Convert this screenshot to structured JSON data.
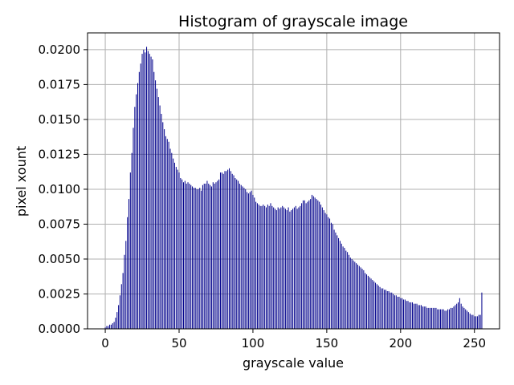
{
  "chart_data": {
    "type": "bar",
    "title": "Histogram of grayscale image",
    "xlabel": "grayscale value",
    "ylabel": "pixel xount",
    "xlim": [
      -12,
      267
    ],
    "ylim": [
      0,
      0.0212
    ],
    "grid": true,
    "bar_color": "#00008b",
    "xticks": [
      0,
      50,
      100,
      150,
      200,
      250
    ],
    "xtick_labels": [
      "0",
      "50",
      "100",
      "150",
      "200",
      "250"
    ],
    "yticks": [
      0,
      0.0025,
      0.005,
      0.0075,
      0.01,
      0.0125,
      0.015,
      0.0175,
      0.02
    ],
    "ytick_labels": [
      "0.0000",
      "0.0025",
      "0.0050",
      "0.0075",
      "0.0100",
      "0.0125",
      "0.0150",
      "0.0175",
      "0.0200"
    ],
    "x": [
      0,
      1,
      2,
      3,
      4,
      5,
      6,
      7,
      8,
      9,
      10,
      11,
      12,
      13,
      14,
      15,
      16,
      17,
      18,
      19,
      20,
      21,
      22,
      23,
      24,
      25,
      26,
      27,
      28,
      29,
      30,
      31,
      32,
      33,
      34,
      35,
      36,
      37,
      38,
      39,
      40,
      41,
      42,
      43,
      44,
      45,
      46,
      47,
      48,
      49,
      50,
      51,
      52,
      53,
      54,
      55,
      56,
      57,
      58,
      59,
      60,
      61,
      62,
      63,
      64,
      65,
      66,
      67,
      68,
      69,
      70,
      71,
      72,
      73,
      74,
      75,
      76,
      77,
      78,
      79,
      80,
      81,
      82,
      83,
      84,
      85,
      86,
      87,
      88,
      89,
      90,
      91,
      92,
      93,
      94,
      95,
      96,
      97,
      98,
      99,
      100,
      101,
      102,
      103,
      104,
      105,
      106,
      107,
      108,
      109,
      110,
      111,
      112,
      113,
      114,
      115,
      116,
      117,
      118,
      119,
      120,
      121,
      122,
      123,
      124,
      125,
      126,
      127,
      128,
      129,
      130,
      131,
      132,
      133,
      134,
      135,
      136,
      137,
      138,
      139,
      140,
      141,
      142,
      143,
      144,
      145,
      146,
      147,
      148,
      149,
      150,
      151,
      152,
      153,
      154,
      155,
      156,
      157,
      158,
      159,
      160,
      161,
      162,
      163,
      164,
      165,
      166,
      167,
      168,
      169,
      170,
      171,
      172,
      173,
      174,
      175,
      176,
      177,
      178,
      179,
      180,
      181,
      182,
      183,
      184,
      185,
      186,
      187,
      188,
      189,
      190,
      191,
      192,
      193,
      194,
      195,
      196,
      197,
      198,
      199,
      200,
      201,
      202,
      203,
      204,
      205,
      206,
      207,
      208,
      209,
      210,
      211,
      212,
      213,
      214,
      215,
      216,
      217,
      218,
      219,
      220,
      221,
      222,
      223,
      224,
      225,
      226,
      227,
      228,
      229,
      230,
      231,
      232,
      233,
      234,
      235,
      236,
      237,
      238,
      239,
      240,
      241,
      242,
      243,
      244,
      245,
      246,
      247,
      248,
      249,
      250,
      251,
      252,
      253,
      254,
      255
    ],
    "values": [
      0.0001,
      0.0002,
      0.0002,
      0.0003,
      0.0003,
      0.0004,
      0.0005,
      0.0008,
      0.0012,
      0.0017,
      0.0024,
      0.0032,
      0.004,
      0.0053,
      0.0063,
      0.008,
      0.0093,
      0.0112,
      0.0126,
      0.0144,
      0.0159,
      0.0168,
      0.0176,
      0.0184,
      0.019,
      0.0197,
      0.02,
      0.0198,
      0.0202,
      0.0199,
      0.0197,
      0.0195,
      0.0193,
      0.0184,
      0.0178,
      0.0172,
      0.0166,
      0.016,
      0.0154,
      0.0148,
      0.0143,
      0.0138,
      0.0136,
      0.0134,
      0.0129,
      0.0126,
      0.0122,
      0.0119,
      0.0116,
      0.0114,
      0.0112,
      0.0108,
      0.0107,
      0.0105,
      0.0106,
      0.0104,
      0.0105,
      0.0104,
      0.0103,
      0.0102,
      0.0101,
      0.0101,
      0.01,
      0.01,
      0.0101,
      0.0099,
      0.0103,
      0.0104,
      0.0104,
      0.0106,
      0.0104,
      0.0103,
      0.0102,
      0.0105,
      0.0104,
      0.0105,
      0.0106,
      0.0107,
      0.0112,
      0.0112,
      0.0111,
      0.0113,
      0.0113,
      0.0114,
      0.0115,
      0.0113,
      0.0111,
      0.011,
      0.0108,
      0.0107,
      0.0106,
      0.0104,
      0.0103,
      0.0102,
      0.0101,
      0.01,
      0.0098,
      0.0097,
      0.0098,
      0.0099,
      0.0096,
      0.0094,
      0.0091,
      0.009,
      0.0089,
      0.0088,
      0.0088,
      0.0089,
      0.0088,
      0.0087,
      0.0089,
      0.0088,
      0.009,
      0.0088,
      0.0087,
      0.0086,
      0.0085,
      0.0087,
      0.0086,
      0.0087,
      0.0088,
      0.0087,
      0.0086,
      0.0085,
      0.0087,
      0.0084,
      0.0085,
      0.0086,
      0.0087,
      0.0088,
      0.0086,
      0.0087,
      0.0088,
      0.009,
      0.0092,
      0.0092,
      0.009,
      0.0091,
      0.0092,
      0.0093,
      0.0096,
      0.0095,
      0.0094,
      0.0093,
      0.0092,
      0.0091,
      0.0089,
      0.0087,
      0.0085,
      0.0083,
      0.0082,
      0.008,
      0.0079,
      0.0076,
      0.0075,
      0.0071,
      0.0069,
      0.0067,
      0.0065,
      0.0063,
      0.0061,
      0.0059,
      0.0058,
      0.0056,
      0.0055,
      0.0053,
      0.0051,
      0.005,
      0.0049,
      0.0048,
      0.0047,
      0.0046,
      0.0045,
      0.0044,
      0.0043,
      0.0042,
      0.004,
      0.0039,
      0.0038,
      0.0037,
      0.0036,
      0.0035,
      0.0034,
      0.0033,
      0.0032,
      0.0031,
      0.003,
      0.0029,
      0.0029,
      0.0028,
      0.0028,
      0.0027,
      0.0027,
      0.0026,
      0.0026,
      0.0025,
      0.0024,
      0.0024,
      0.0023,
      0.0023,
      0.0022,
      0.0022,
      0.0021,
      0.0021,
      0.002,
      0.002,
      0.0019,
      0.0019,
      0.0019,
      0.0018,
      0.0018,
      0.0018,
      0.0017,
      0.0017,
      0.0017,
      0.0016,
      0.0016,
      0.0016,
      0.0015,
      0.0015,
      0.0015,
      0.0015,
      0.0015,
      0.0015,
      0.0015,
      0.0014,
      0.0014,
      0.0014,
      0.0014,
      0.0014,
      0.0013,
      0.0013,
      0.0014,
      0.0014,
      0.0015,
      0.0015,
      0.0016,
      0.0017,
      0.0018,
      0.0019,
      0.0022,
      0.0018,
      0.0016,
      0.0015,
      0.0014,
      0.0013,
      0.0012,
      0.0011,
      0.001,
      0.001,
      0.0009,
      0.0009,
      0.0009,
      0.001,
      0.001,
      0.0026
    ]
  }
}
